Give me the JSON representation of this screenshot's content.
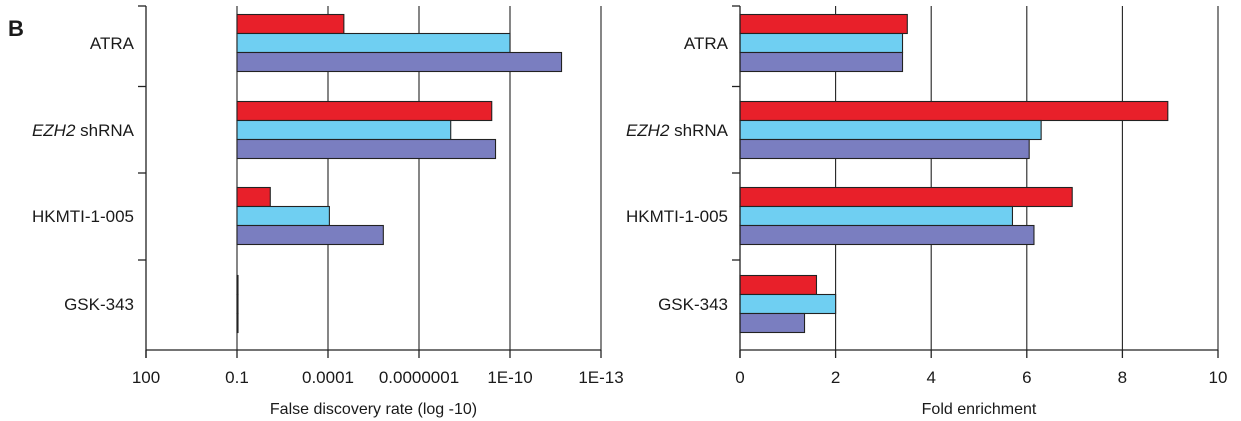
{
  "panel_label": "B",
  "colors": {
    "series1": "#e8202a",
    "series2": "#6fcff2",
    "series3": "#7a7ec0"
  },
  "chart_data": [
    {
      "type": "bar",
      "orientation": "horizontal",
      "xlabel": "False discovery rate (log -10)",
      "ylabel": "",
      "x_scale": "log",
      "x_tick_labels": [
        "100",
        "0.1",
        "0.0001",
        "0.0000001",
        "1E-10",
        "1E-13"
      ],
      "xlim": [
        100,
        1e-13
      ],
      "grid": "vertical",
      "categories": [
        "ATRA",
        "EZH2 shRNA",
        "HKMTI-1-005",
        "GSK-343"
      ],
      "category_italic_prefix": [
        "",
        "EZH2",
        "",
        ""
      ],
      "category_suffix": [
        "",
        " shRNA",
        "",
        ""
      ],
      "series": [
        {
          "values": [
            3e-05,
            4e-10,
            0.008,
            0.1
          ]
        },
        {
          "values": [
            1e-10,
            9e-09,
            9e-05,
            0.1
          ]
        },
        {
          "values": [
            2e-12,
            3e-10,
            1.5e-06,
            0.1
          ]
        }
      ]
    },
    {
      "type": "bar",
      "orientation": "horizontal",
      "xlabel": "Fold enrichment",
      "ylabel": "",
      "x_scale": "linear",
      "x_tick_labels": [
        "0",
        "2",
        "4",
        "6",
        "8",
        "10"
      ],
      "xlim": [
        0,
        10
      ],
      "grid": "vertical",
      "categories": [
        "ATRA",
        "EZH2 shRNA",
        "HKMTI-1-005",
        "GSK-343"
      ],
      "category_italic_prefix": [
        "",
        "EZH2",
        "",
        ""
      ],
      "category_suffix": [
        "",
        " shRNA",
        "",
        ""
      ],
      "series": [
        {
          "values": [
            3.5,
            8.95,
            6.95,
            1.6
          ]
        },
        {
          "values": [
            3.4,
            6.3,
            5.7,
            2.0
          ]
        },
        {
          "values": [
            3.4,
            6.05,
            6.15,
            1.35
          ]
        }
      ]
    }
  ]
}
